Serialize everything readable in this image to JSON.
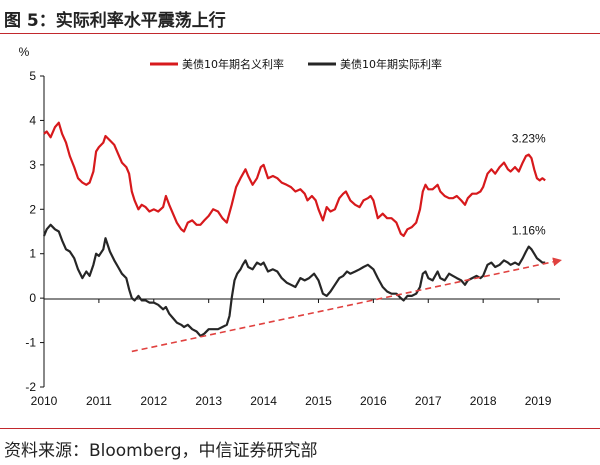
{
  "figure": {
    "title": "图 5：实际利率水平震荡上行",
    "source": "资料来源：Bloomberg，中信证券研究部"
  },
  "chart_data": {
    "type": "line",
    "unit_label": "%",
    "ylim": [
      -2,
      5
    ],
    "yticks": [
      "5",
      "4",
      "3",
      "2",
      "1",
      "0",
      "-1",
      "-2"
    ],
    "xlim": [
      2010,
      2019.4
    ],
    "xticks": [
      "2010",
      "2011",
      "2012",
      "2013",
      "2014",
      "2015",
      "2016",
      "2017",
      "2018",
      "2019"
    ],
    "legend_position": "top",
    "grid": false,
    "series": [
      {
        "name": "美债10年期名义利率",
        "color": "#d7191c",
        "points": [
          [
            2010.0,
            3.7
          ],
          [
            2010.05,
            3.75
          ],
          [
            2010.12,
            3.62
          ],
          [
            2010.2,
            3.85
          ],
          [
            2010.27,
            3.95
          ],
          [
            2010.33,
            3.7
          ],
          [
            2010.4,
            3.5
          ],
          [
            2010.47,
            3.2
          ],
          [
            2010.55,
            2.95
          ],
          [
            2010.62,
            2.7
          ],
          [
            2010.7,
            2.6
          ],
          [
            2010.77,
            2.55
          ],
          [
            2010.83,
            2.6
          ],
          [
            2010.9,
            2.85
          ],
          [
            2010.95,
            3.3
          ],
          [
            2011.0,
            3.4
          ],
          [
            2011.08,
            3.5
          ],
          [
            2011.12,
            3.65
          ],
          [
            2011.2,
            3.55
          ],
          [
            2011.28,
            3.45
          ],
          [
            2011.35,
            3.25
          ],
          [
            2011.42,
            3.05
          ],
          [
            2011.5,
            2.95
          ],
          [
            2011.55,
            2.8
          ],
          [
            2011.6,
            2.4
          ],
          [
            2011.65,
            2.2
          ],
          [
            2011.72,
            2.0
          ],
          [
            2011.78,
            2.1
          ],
          [
            2011.85,
            2.05
          ],
          [
            2011.92,
            1.95
          ],
          [
            2012.0,
            2.0
          ],
          [
            2012.08,
            1.95
          ],
          [
            2012.17,
            2.05
          ],
          [
            2012.22,
            2.3
          ],
          [
            2012.28,
            2.1
          ],
          [
            2012.35,
            1.9
          ],
          [
            2012.42,
            1.7
          ],
          [
            2012.5,
            1.55
          ],
          [
            2012.55,
            1.5
          ],
          [
            2012.62,
            1.7
          ],
          [
            2012.7,
            1.75
          ],
          [
            2012.78,
            1.65
          ],
          [
            2012.85,
            1.65
          ],
          [
            2012.92,
            1.75
          ],
          [
            2013.0,
            1.85
          ],
          [
            2013.08,
            2.0
          ],
          [
            2013.17,
            1.95
          ],
          [
            2013.25,
            1.8
          ],
          [
            2013.33,
            1.7
          ],
          [
            2013.42,
            2.1
          ],
          [
            2013.5,
            2.5
          ],
          [
            2013.58,
            2.7
          ],
          [
            2013.67,
            2.9
          ],
          [
            2013.72,
            2.75
          ],
          [
            2013.8,
            2.55
          ],
          [
            2013.88,
            2.7
          ],
          [
            2013.95,
            2.95
          ],
          [
            2014.0,
            3.0
          ],
          [
            2014.08,
            2.7
          ],
          [
            2014.17,
            2.75
          ],
          [
            2014.25,
            2.7
          ],
          [
            2014.33,
            2.6
          ],
          [
            2014.42,
            2.55
          ],
          [
            2014.5,
            2.5
          ],
          [
            2014.58,
            2.4
          ],
          [
            2014.67,
            2.45
          ],
          [
            2014.75,
            2.35
          ],
          [
            2014.8,
            2.2
          ],
          [
            2014.88,
            2.3
          ],
          [
            2014.95,
            2.2
          ],
          [
            2015.0,
            2.0
          ],
          [
            2015.08,
            1.75
          ],
          [
            2015.15,
            2.05
          ],
          [
            2015.22,
            1.95
          ],
          [
            2015.3,
            2.0
          ],
          [
            2015.38,
            2.25
          ],
          [
            2015.45,
            2.35
          ],
          [
            2015.5,
            2.4
          ],
          [
            2015.58,
            2.2
          ],
          [
            2015.67,
            2.1
          ],
          [
            2015.75,
            2.05
          ],
          [
            2015.82,
            2.2
          ],
          [
            2015.9,
            2.25
          ],
          [
            2015.95,
            2.3
          ],
          [
            2016.0,
            2.2
          ],
          [
            2016.08,
            1.8
          ],
          [
            2016.17,
            1.9
          ],
          [
            2016.25,
            1.8
          ],
          [
            2016.33,
            1.8
          ],
          [
            2016.42,
            1.7
          ],
          [
            2016.5,
            1.45
          ],
          [
            2016.55,
            1.4
          ],
          [
            2016.62,
            1.55
          ],
          [
            2016.7,
            1.6
          ],
          [
            2016.78,
            1.7
          ],
          [
            2016.85,
            2.0
          ],
          [
            2016.9,
            2.4
          ],
          [
            2016.95,
            2.55
          ],
          [
            2017.0,
            2.45
          ],
          [
            2017.08,
            2.45
          ],
          [
            2017.17,
            2.55
          ],
          [
            2017.22,
            2.4
          ],
          [
            2017.3,
            2.3
          ],
          [
            2017.38,
            2.25
          ],
          [
            2017.45,
            2.25
          ],
          [
            2017.52,
            2.3
          ],
          [
            2017.6,
            2.2
          ],
          [
            2017.67,
            2.1
          ],
          [
            2017.72,
            2.25
          ],
          [
            2017.8,
            2.35
          ],
          [
            2017.88,
            2.35
          ],
          [
            2017.95,
            2.4
          ],
          [
            2018.0,
            2.5
          ],
          [
            2018.08,
            2.8
          ],
          [
            2018.15,
            2.9
          ],
          [
            2018.22,
            2.8
          ],
          [
            2018.3,
            2.95
          ],
          [
            2018.38,
            3.05
          ],
          [
            2018.45,
            2.9
          ],
          [
            2018.5,
            2.85
          ],
          [
            2018.58,
            2.95
          ],
          [
            2018.65,
            2.85
          ],
          [
            2018.72,
            3.05
          ],
          [
            2018.78,
            3.2
          ],
          [
            2018.83,
            3.23
          ],
          [
            2018.88,
            3.15
          ],
          [
            2018.93,
            2.9
          ],
          [
            2018.98,
            2.7
          ],
          [
            2019.03,
            2.65
          ],
          [
            2019.08,
            2.7
          ],
          [
            2019.13,
            2.65
          ]
        ]
      },
      {
        "name": "美债10年期实际利率",
        "color": "#262626",
        "points": [
          [
            2010.0,
            1.4
          ],
          [
            2010.05,
            1.55
          ],
          [
            2010.12,
            1.65
          ],
          [
            2010.2,
            1.55
          ],
          [
            2010.27,
            1.5
          ],
          [
            2010.33,
            1.3
          ],
          [
            2010.4,
            1.1
          ],
          [
            2010.47,
            1.05
          ],
          [
            2010.55,
            0.9
          ],
          [
            2010.62,
            0.65
          ],
          [
            2010.7,
            0.45
          ],
          [
            2010.77,
            0.6
          ],
          [
            2010.83,
            0.5
          ],
          [
            2010.9,
            0.75
          ],
          [
            2010.95,
            1.0
          ],
          [
            2011.0,
            0.95
          ],
          [
            2011.08,
            1.1
          ],
          [
            2011.12,
            1.35
          ],
          [
            2011.2,
            1.05
          ],
          [
            2011.28,
            0.85
          ],
          [
            2011.35,
            0.7
          ],
          [
            2011.42,
            0.55
          ],
          [
            2011.5,
            0.45
          ],
          [
            2011.55,
            0.2
          ],
          [
            2011.6,
            0.0
          ],
          [
            2011.65,
            -0.05
          ],
          [
            2011.72,
            0.05
          ],
          [
            2011.78,
            -0.05
          ],
          [
            2011.85,
            -0.05
          ],
          [
            2011.92,
            -0.1
          ],
          [
            2012.0,
            -0.1
          ],
          [
            2012.08,
            -0.15
          ],
          [
            2012.17,
            -0.25
          ],
          [
            2012.22,
            -0.2
          ],
          [
            2012.28,
            -0.35
          ],
          [
            2012.35,
            -0.45
          ],
          [
            2012.42,
            -0.55
          ],
          [
            2012.5,
            -0.6
          ],
          [
            2012.55,
            -0.65
          ],
          [
            2012.62,
            -0.6
          ],
          [
            2012.7,
            -0.7
          ],
          [
            2012.78,
            -0.75
          ],
          [
            2012.85,
            -0.85
          ],
          [
            2012.92,
            -0.8
          ],
          [
            2013.0,
            -0.7
          ],
          [
            2013.08,
            -0.7
          ],
          [
            2013.17,
            -0.7
          ],
          [
            2013.25,
            -0.65
          ],
          [
            2013.33,
            -0.6
          ],
          [
            2013.38,
            -0.4
          ],
          [
            2013.42,
            0.0
          ],
          [
            2013.47,
            0.4
          ],
          [
            2013.52,
            0.55
          ],
          [
            2013.58,
            0.65
          ],
          [
            2013.62,
            0.75
          ],
          [
            2013.67,
            0.85
          ],
          [
            2013.72,
            0.7
          ],
          [
            2013.8,
            0.65
          ],
          [
            2013.88,
            0.8
          ],
          [
            2013.95,
            0.75
          ],
          [
            2014.0,
            0.8
          ],
          [
            2014.08,
            0.6
          ],
          [
            2014.17,
            0.65
          ],
          [
            2014.25,
            0.6
          ],
          [
            2014.33,
            0.45
          ],
          [
            2014.42,
            0.35
          ],
          [
            2014.5,
            0.3
          ],
          [
            2014.58,
            0.25
          ],
          [
            2014.67,
            0.45
          ],
          [
            2014.75,
            0.4
          ],
          [
            2014.83,
            0.45
          ],
          [
            2014.92,
            0.55
          ],
          [
            2015.0,
            0.4
          ],
          [
            2015.08,
            0.1
          ],
          [
            2015.15,
            0.05
          ],
          [
            2015.22,
            0.15
          ],
          [
            2015.3,
            0.3
          ],
          [
            2015.38,
            0.45
          ],
          [
            2015.45,
            0.5
          ],
          [
            2015.52,
            0.6
          ],
          [
            2015.58,
            0.55
          ],
          [
            2015.67,
            0.6
          ],
          [
            2015.75,
            0.65
          ],
          [
            2015.82,
            0.7
          ],
          [
            2015.9,
            0.75
          ],
          [
            2015.95,
            0.7
          ],
          [
            2016.0,
            0.65
          ],
          [
            2016.08,
            0.45
          ],
          [
            2016.17,
            0.25
          ],
          [
            2016.25,
            0.15
          ],
          [
            2016.33,
            0.1
          ],
          [
            2016.42,
            0.1
          ],
          [
            2016.5,
            0.0
          ],
          [
            2016.55,
            -0.05
          ],
          [
            2016.62,
            0.05
          ],
          [
            2016.7,
            0.05
          ],
          [
            2016.78,
            0.1
          ],
          [
            2016.85,
            0.25
          ],
          [
            2016.9,
            0.55
          ],
          [
            2016.95,
            0.6
          ],
          [
            2017.0,
            0.45
          ],
          [
            2017.08,
            0.4
          ],
          [
            2017.17,
            0.6
          ],
          [
            2017.22,
            0.45
          ],
          [
            2017.3,
            0.4
          ],
          [
            2017.38,
            0.55
          ],
          [
            2017.45,
            0.5
          ],
          [
            2017.52,
            0.45
          ],
          [
            2017.6,
            0.4
          ],
          [
            2017.67,
            0.3
          ],
          [
            2017.72,
            0.4
          ],
          [
            2017.8,
            0.45
          ],
          [
            2017.88,
            0.5
          ],
          [
            2017.95,
            0.45
          ],
          [
            2018.0,
            0.5
          ],
          [
            2018.08,
            0.75
          ],
          [
            2018.15,
            0.8
          ],
          [
            2018.22,
            0.7
          ],
          [
            2018.3,
            0.75
          ],
          [
            2018.38,
            0.85
          ],
          [
            2018.45,
            0.8
          ],
          [
            2018.5,
            0.75
          ],
          [
            2018.58,
            0.8
          ],
          [
            2018.65,
            0.75
          ],
          [
            2018.72,
            0.9
          ],
          [
            2018.78,
            1.05
          ],
          [
            2018.83,
            1.16
          ],
          [
            2018.88,
            1.1
          ],
          [
            2018.93,
            1.0
          ],
          [
            2018.98,
            0.9
          ],
          [
            2019.03,
            0.85
          ],
          [
            2019.08,
            0.8
          ],
          [
            2019.13,
            0.8
          ]
        ]
      }
    ],
    "annotations": [
      {
        "text": "3.23%",
        "x": 2018.83,
        "y": 3.23
      },
      {
        "text": "1.16%",
        "x": 2018.83,
        "y": 1.16
      }
    ],
    "trend_arrow": {
      "from": [
        2011.6,
        -1.2
      ],
      "to": [
        2019.4,
        0.85
      ],
      "color": "#e0413f"
    }
  }
}
